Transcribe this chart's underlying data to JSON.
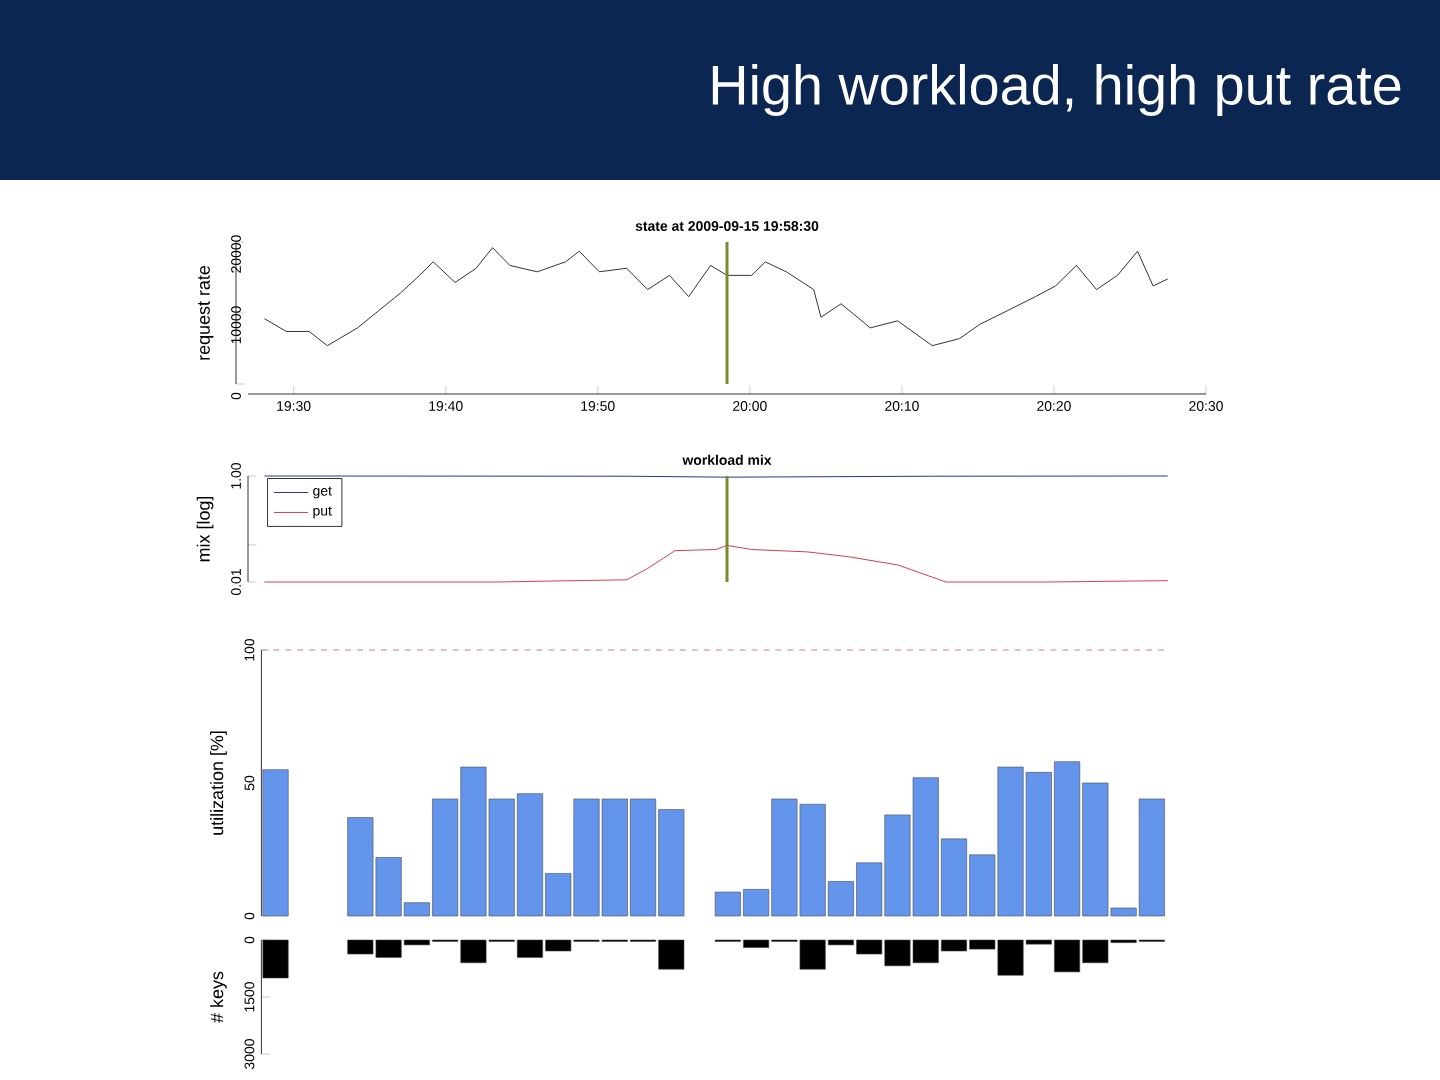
{
  "chart_data": [
    {
      "type": "line",
      "title": "High workload, high put rate",
      "subtitle": "state at 2009-09-15 19:58:30",
      "ylabel": "request rate",
      "xlim": [
        19.45,
        20.5
      ],
      "ylim": [
        0,
        20000
      ],
      "xticks": [
        {
          "value": 19.5,
          "label": "19:30"
        },
        {
          "value": 19.6667,
          "label": "19:40"
        },
        {
          "value": 19.8333,
          "label": "19:50"
        },
        {
          "value": 20,
          "label": "20:00"
        },
        {
          "value": 20.1667,
          "label": "20:10"
        },
        {
          "value": 20.3333,
          "label": "20:20"
        },
        {
          "value": 20.5,
          "label": "20:30"
        }
      ],
      "yticks": [
        0,
        10000,
        20000
      ],
      "x": [
        19.468,
        19.492,
        19.517,
        19.537,
        19.57,
        19.593,
        19.617,
        19.638,
        19.653,
        19.677,
        19.7,
        19.718,
        19.737,
        19.767,
        19.798,
        19.813,
        19.835,
        19.865,
        19.888,
        19.912,
        19.933,
        19.957,
        19.975,
        20.002,
        20.017,
        20.04,
        20.07,
        20.078,
        20.1,
        20.132,
        20.162,
        20.2,
        20.23,
        20.252,
        20.282,
        20.313,
        20.335,
        20.358,
        20.38,
        20.403,
        20.425,
        20.442,
        20.458
      ],
      "series": [
        {
          "color": "#333333",
          "values": [
            9200,
            7400,
            7400,
            5400,
            7900,
            10300,
            12800,
            15300,
            17200,
            14300,
            16300,
            19200,
            16700,
            15800,
            17200,
            18700,
            15800,
            16300,
            13300,
            15300,
            12300,
            16700,
            15300,
            15300,
            17200,
            15800,
            13300,
            9400,
            11300,
            7900,
            8900,
            5400,
            6400,
            8400,
            10300,
            12300,
            13800,
            16700,
            13300,
            15300,
            18700,
            13800,
            14800
          ]
        }
      ],
      "ref_lines": [
        {
          "axis": "x",
          "value": 19.975,
          "color": "#7a8a30"
        }
      ]
    },
    {
      "type": "line",
      "title": "workload mix",
      "ylabel": "mix [log]",
      "log": true,
      "legend": "top left",
      "tick_labels": "y",
      "xlim": [
        19.45,
        20.5
      ],
      "ylim": [
        0.01,
        1
      ],
      "yticks": [
        {
          "value": 0.01,
          "label": "0.01"
        },
        {
          "value": 0.05,
          "label": null
        },
        {
          "value": 1,
          "label": "1.00"
        }
      ],
      "series": [
        {
          "name": "get",
          "color": "#283593",
          "x": [
            19.468,
            19.865,
            19.975,
            20.2,
            20.458
          ],
          "values": [
            1.0,
            0.99,
            0.95,
            0.99,
            1.0
          ]
        },
        {
          "name": "put",
          "color": "#d04050",
          "x": [
            19.468,
            19.57,
            19.722,
            19.865,
            19.888,
            19.918,
            19.963,
            19.975,
            20.002,
            20.063,
            20.108,
            20.162,
            20.215,
            20.328,
            20.458
          ],
          "values": [
            0.01,
            0.01,
            0.01,
            0.011,
            0.018,
            0.039,
            0.041,
            0.049,
            0.041,
            0.037,
            0.03,
            0.021,
            0.01,
            0.01,
            0.0106
          ]
        }
      ],
      "ref_lines": [
        {
          "axis": "x",
          "value": 19.975,
          "color": "#7a8a30"
        }
      ]
    },
    {
      "type": "bar",
      "ylabel": "utilization [%]",
      "tick_labels": "y",
      "ylim": [
        0,
        100
      ],
      "yticks": [
        0,
        50,
        100
      ],
      "categories": [
        null,
        null,
        null,
        null,
        null,
        null,
        null,
        null,
        null,
        null,
        null,
        null,
        null,
        null,
        null,
        null,
        null,
        null,
        null,
        null,
        null,
        null,
        null,
        null,
        null,
        null,
        null,
        null,
        null,
        null,
        null,
        null
      ],
      "series": [
        {
          "color": "#6495ed",
          "values": [
            55,
            null,
            null,
            37,
            22,
            5,
            44,
            56,
            44,
            46,
            16,
            44,
            44,
            44,
            40,
            null,
            9,
            10,
            44,
            42,
            13,
            20,
            38,
            52,
            29,
            23,
            56,
            54,
            58,
            50,
            3,
            44
          ]
        }
      ],
      "ref_lines": [
        {
          "axis": "y",
          "value": 100,
          "color": "#d08080",
          "line_style": "dashed"
        }
      ]
    },
    {
      "type": "bar",
      "ylabel": "# keys",
      "tick_labels": "y",
      "ylim": [
        3000,
        0
      ],
      "yticks": [
        0,
        1500,
        3000
      ],
      "categories": [
        null,
        null,
        null,
        null,
        null,
        null,
        null,
        null,
        null,
        null,
        null,
        null,
        null,
        null,
        null,
        null,
        null,
        null,
        null,
        null,
        null,
        null,
        null,
        null,
        null,
        null,
        null,
        null,
        null,
        null,
        null,
        null
      ],
      "series": [
        {
          "color": "#000000",
          "values": [
            1000,
            null,
            null,
            370,
            460,
            130,
            40,
            600,
            40,
            460,
            290,
            40,
            40,
            40,
            770,
            null,
            40,
            200,
            40,
            770,
            130,
            370,
            680,
            600,
            290,
            240,
            930,
            110,
            840,
            600,
            70,
            40
          ]
        }
      ]
    }
  ]
}
